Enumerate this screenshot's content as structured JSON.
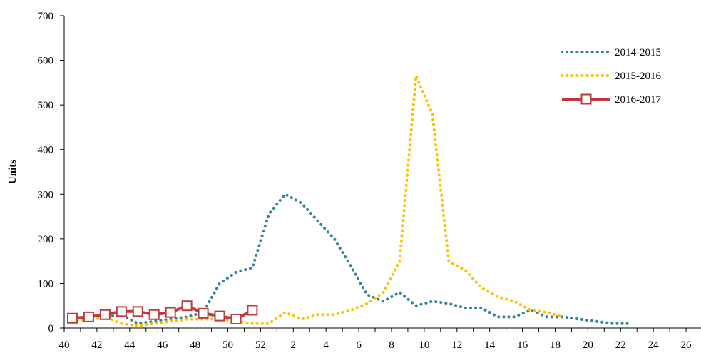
{
  "chart_data": {
    "type": "line",
    "ylabel": "Units",
    "ylim": [
      0,
      700
    ],
    "yticks": [
      0,
      100,
      200,
      300,
      400,
      500,
      600,
      700
    ],
    "week_sequence": [
      40,
      41,
      42,
      43,
      44,
      45,
      46,
      47,
      48,
      49,
      50,
      51,
      52,
      1,
      2,
      3,
      4,
      5,
      6,
      7,
      8,
      9,
      10,
      11,
      12,
      13,
      14,
      15,
      16,
      17,
      18,
      19,
      20,
      21,
      22,
      23,
      24,
      25,
      26
    ],
    "xtick_labels": [
      "40",
      "42",
      "44",
      "46",
      "48",
      "50",
      "52",
      "2",
      "4",
      "6",
      "8",
      "10",
      "12",
      "14",
      "16",
      "18",
      "20",
      "22",
      "24",
      "26"
    ],
    "legend_position": "top-right",
    "series": [
      {
        "name": "2014-2015",
        "color": "#31849b",
        "style": "dotted",
        "values": [
          20,
          25,
          25,
          30,
          10,
          15,
          20,
          25,
          35,
          100,
          125,
          135,
          255,
          300,
          280,
          240,
          200,
          140,
          75,
          60,
          80,
          50,
          60,
          55,
          45,
          45,
          25,
          25,
          40,
          25,
          25,
          20,
          15,
          10,
          10
        ]
      },
      {
        "name": "2015-2016",
        "color": "#ffc000",
        "style": "dotted",
        "values": [
          15,
          20,
          25,
          10,
          5,
          10,
          15,
          20,
          20,
          20,
          15,
          10,
          10,
          35,
          20,
          30,
          30,
          40,
          55,
          80,
          150,
          565,
          480,
          150,
          130,
          90,
          70,
          60,
          40,
          35,
          25
        ]
      },
      {
        "name": "2016-2017",
        "color": "#c0393b",
        "style": "solid-square-markers",
        "values": [
          22,
          25,
          30,
          37,
          37,
          30,
          35,
          50,
          33,
          27,
          20,
          40
        ]
      }
    ]
  }
}
